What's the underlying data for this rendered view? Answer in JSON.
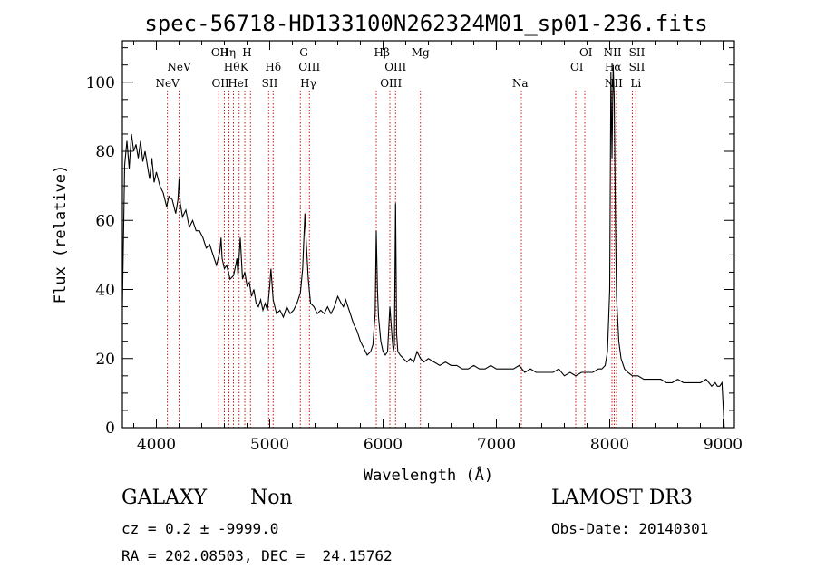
{
  "chart_data": {
    "type": "line",
    "title": "spec-56718-HD133100N262324M01_sp01-236.fits",
    "xlabel": "Wavelength (Å)",
    "ylabel": "Flux (relative)",
    "xlim": [
      3700,
      9100
    ],
    "ylim": [
      0,
      112
    ],
    "x_ticks": [
      4000,
      5000,
      6000,
      7000,
      8000,
      9000
    ],
    "y_ticks": [
      0,
      20,
      40,
      60,
      80,
      100
    ],
    "grid": false,
    "series": [
      {
        "x": [
          3700,
          3720,
          3740,
          3760,
          3780,
          3800,
          3820,
          3840,
          3860,
          3880,
          3900,
          3920,
          3940,
          3960,
          3980,
          4000,
          4030,
          4060,
          4090,
          4110,
          4140,
          4170,
          4190,
          4200,
          4210,
          4230,
          4260,
          4290,
          4320,
          4350,
          4380,
          4410,
          4440,
          4470,
          4500,
          4530,
          4560,
          4570,
          4580,
          4600,
          4620,
          4650,
          4680,
          4700,
          4710,
          4720,
          4740,
          4760,
          4780,
          4800,
          4820,
          4840,
          4860,
          4880,
          4900,
          4920,
          4940,
          4960,
          4980,
          5000,
          5010,
          5030,
          5060,
          5090,
          5120,
          5150,
          5180,
          5210,
          5240,
          5270,
          5290,
          5310,
          5320,
          5340,
          5360,
          5390,
          5420,
          5450,
          5480,
          5510,
          5540,
          5570,
          5600,
          5630,
          5650,
          5670,
          5690,
          5710,
          5740,
          5770,
          5800,
          5830,
          5860,
          5890,
          5910,
          5930,
          5940,
          5950,
          5960,
          5980,
          6000,
          6020,
          6040,
          6060,
          6080,
          6090,
          6100,
          6110,
          6120,
          6130,
          6150,
          6180,
          6210,
          6240,
          6270,
          6300,
          6330,
          6360,
          6400,
          6450,
          6500,
          6550,
          6600,
          6650,
          6700,
          6750,
          6800,
          6850,
          6900,
          6950,
          7000,
          7050,
          7100,
          7150,
          7200,
          7250,
          7300,
          7350,
          7400,
          7450,
          7500,
          7550,
          7600,
          7650,
          7700,
          7750,
          7800,
          7850,
          7900,
          7930,
          7960,
          7980,
          8000,
          8010,
          8020,
          8030,
          8040,
          8050,
          8060,
          8080,
          8100,
          8130,
          8160,
          8200,
          8250,
          8300,
          8350,
          8400,
          8450,
          8500,
          8550,
          8600,
          8650,
          8700,
          8750,
          8800,
          8850,
          8900,
          8930,
          8950,
          8970,
          8990,
          9010
        ],
        "y": [
          35,
          76,
          83,
          75,
          85,
          80,
          82,
          78,
          83,
          77,
          80,
          76,
          72,
          78,
          71,
          74,
          70,
          68,
          64,
          67,
          66,
          62,
          66,
          72,
          65,
          61,
          63,
          58,
          60,
          57,
          57,
          55,
          52,
          53,
          50,
          47,
          51,
          55,
          49,
          46,
          47,
          43,
          44,
          47,
          49,
          44,
          55,
          43,
          45,
          41,
          42,
          38,
          40,
          36,
          35,
          37,
          34,
          36,
          34,
          41,
          46,
          37,
          33,
          34,
          32,
          35,
          33,
          34,
          36,
          39,
          46,
          62,
          55,
          43,
          36,
          35,
          33,
          34,
          33,
          35,
          33,
          35,
          38,
          36,
          35,
          37,
          35,
          33,
          30,
          28,
          25,
          23,
          21,
          22,
          24,
          33,
          57,
          40,
          32,
          25,
          22,
          21,
          22,
          35,
          26,
          22,
          24,
          65,
          27,
          22,
          21,
          20,
          19,
          20,
          19,
          22,
          20,
          19,
          20,
          19,
          18,
          19,
          18,
          18,
          17,
          17,
          18,
          17,
          17,
          18,
          17,
          17,
          17,
          17,
          18,
          16,
          17,
          16,
          16,
          16,
          16,
          17,
          15,
          16,
          15,
          16,
          16,
          16,
          17,
          17,
          18,
          22,
          40,
          103,
          78,
          105,
          95,
          60,
          38,
          25,
          20,
          17,
          16,
          15,
          15,
          14,
          14,
          14,
          14,
          13,
          13,
          14,
          13,
          13,
          13,
          13,
          14,
          12,
          13,
          12,
          12,
          13,
          0
        ]
      }
    ],
    "spectral_lines": [
      {
        "name": "NeV",
        "x": 4097,
        "row": 3
      },
      {
        "name": "NeV",
        "x": 4200,
        "row": 2
      },
      {
        "name": "OII",
        "x": 4560,
        "row": 1
      },
      {
        "name": "OII",
        "x": 4565,
        "row": 3
      },
      {
        "name": "Hη",
        "x": 4630,
        "row": 1
      },
      {
        "name": "Hθ",
        "x": 4665,
        "row": 2
      },
      {
        "name": "HeI",
        "x": 4720,
        "row": 3
      },
      {
        "name": "H",
        "x": 4800,
        "row": 1
      },
      {
        "name": "K",
        "x": 4775,
        "row": 2
      },
      {
        "name": "Hδ",
        "x": 5030,
        "row": 2
      },
      {
        "name": "SII",
        "x": 5000,
        "row": 3
      },
      {
        "name": "G",
        "x": 5300,
        "row": 1
      },
      {
        "name": "OIII",
        "x": 5350,
        "row": 2
      },
      {
        "name": "Hγ",
        "x": 5340,
        "row": 3
      },
      {
        "name": "Hβ",
        "x": 5990,
        "row": 1
      },
      {
        "name": "OIII",
        "x": 6110,
        "row": 2
      },
      {
        "name": "OIII",
        "x": 6070,
        "row": 3
      },
      {
        "name": "Mg",
        "x": 6330,
        "row": 1
      },
      {
        "name": "Na",
        "x": 7210,
        "row": 3
      },
      {
        "name": "OI",
        "x": 7790,
        "row": 1
      },
      {
        "name": "OI",
        "x": 7710,
        "row": 2
      },
      {
        "name": "NII",
        "x": 8025,
        "row": 1
      },
      {
        "name": "Hα",
        "x": 8030,
        "row": 2
      },
      {
        "name": "NII",
        "x": 8035,
        "row": 3
      },
      {
        "name": "SII",
        "x": 8240,
        "row": 1
      },
      {
        "name": "SII",
        "x": 8240,
        "row": 2
      },
      {
        "name": "Li",
        "x": 8230,
        "row": 3
      }
    ],
    "line_markers_x": [
      4097,
      4200,
      4550,
      4600,
      4640,
      4680,
      4730,
      4780,
      4830,
      4990,
      5030,
      5270,
      5320,
      5350,
      5940,
      6060,
      6110,
      6330,
      7220,
      7700,
      7780,
      8020,
      8040,
      8060,
      8200,
      8230
    ],
    "line_color": "#cc0000",
    "series_color": "#000000"
  },
  "info": {
    "class": "GALAXY",
    "subclass": "Non",
    "survey": "LAMOST DR3",
    "cz": "cz = 0.2 ± -9999.0",
    "obs_date": "Obs-Date: 20140301",
    "radec": "RA = 202.08503, DEC =  24.15762"
  }
}
